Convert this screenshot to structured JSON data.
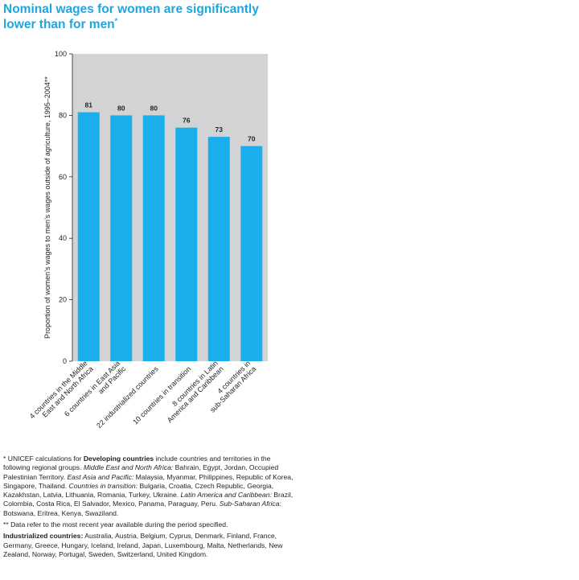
{
  "title": {
    "line1": "Nominal wages for women are significantly",
    "line2": "lower than for men",
    "marker": "*"
  },
  "colors": {
    "accent": "#1ea6e0",
    "bar": "#1aaeec",
    "plot_bg": "#d1d3d4"
  },
  "chart_data": {
    "type": "bar",
    "title": "Nominal wages for women are significantly lower than for men*",
    "xlabel": "",
    "ylabel": "Proportion of women’s wages to men’s wages outside of agriculture, 1995–2004**",
    "ylim": [
      0,
      100
    ],
    "yticks": [
      0,
      20,
      40,
      60,
      80,
      100
    ],
    "grid": false,
    "categories": [
      [
        "4 countries in the Middle",
        "East and North Africa"
      ],
      [
        "6 countries in East Asia",
        "and Pacific"
      ],
      [
        "22 industrialized countries"
      ],
      [
        "10 countries in transition"
      ],
      [
        "8 countries in Latin",
        "America and Caribbean"
      ],
      [
        "4 countries in",
        "sub-Saharan Africa"
      ]
    ],
    "values": [
      81,
      80,
      80,
      76,
      73,
      70
    ],
    "data_labels": [
      "81",
      "80",
      "80",
      "76",
      "73",
      "70"
    ]
  },
  "footnotes": {
    "star": {
      "lead": "* UNICEF calculations for ",
      "dev_bold": "Developing countries",
      "text1": " include countries and territories in the following regional groups. ",
      "mena_label": "Middle East and North Africa:",
      "mena_list": " Bahrain, Egypt, Jordan, Occupied Palestinian Territory. ",
      "eap_label": "East Asia and Pacific:",
      "eap_list": " Malaysia, Myanmar, Philippines, Republic of Korea, Singapore, Thailand. ",
      "cit_label": "Countries in transition:",
      "cit_list": " Bulgaria, Croatia, Czech Republic, Georgia, Kazakhstan, Latvia, Lithuania, Romania, Turkey, Ukraine. ",
      "lac_label": "Latin America and Caribbean:",
      "lac_list": " Brazil, Colombia, Costa Rica, El Salvador, Mexico, Panama, Paraguay, Peru. ",
      "ssa_label": "Sub-Saharan Africa:",
      "ssa_list": " Botswana, Eritrea, Kenya, Swaziland."
    },
    "double_star": "** Data refer to the most recent year available during the period specified.",
    "industrialized": {
      "label": "Industrialized countries:",
      "list": " Australia, Austria, Belgium, Cyprus, Denmark, Finland, France, Germany, Greece, Hungary, Iceland, Ireland, Japan, Luxembourg, Malta, Netherlands, New Zealand, Norway, Portugal, Sweden, Switzerland, United Kingdom."
    }
  }
}
